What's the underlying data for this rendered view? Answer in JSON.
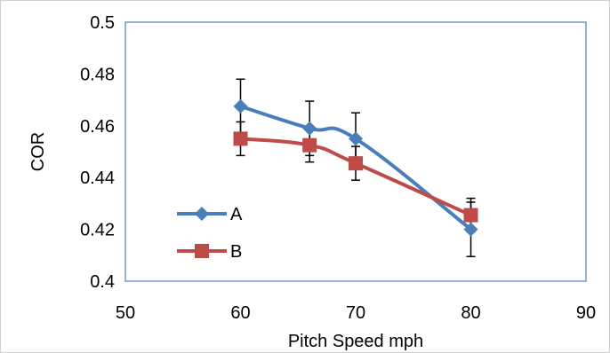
{
  "chart_data": {
    "type": "line",
    "xlabel": "Pitch Speed mph",
    "ylabel": "COR",
    "xlim": [
      50,
      90
    ],
    "ylim": [
      0.4,
      0.5
    ],
    "xticks": [
      50,
      60,
      70,
      80,
      90
    ],
    "yticks": [
      0.4,
      0.42,
      0.44,
      0.46,
      0.48,
      0.5
    ],
    "xtick_labels": [
      "50",
      "60",
      "70",
      "80",
      "90"
    ],
    "ytick_labels": [
      "0.4",
      "0.42",
      "0.44",
      "0.46",
      "0.48",
      "0.5"
    ],
    "grid": false,
    "legend_position": "bottom-left",
    "series": [
      {
        "name": "A",
        "color": "#4a7ebb",
        "marker": "diamond",
        "x": [
          60,
          66,
          70,
          80
        ],
        "y": [
          0.4675,
          0.459,
          0.455,
          0.42
        ],
        "err": [
          0.0105,
          0.0105,
          0.01,
          0.0105
        ]
      },
      {
        "name": "B",
        "color": "#be4b48",
        "marker": "square",
        "x": [
          60,
          66,
          70,
          80
        ],
        "y": [
          0.455,
          0.4525,
          0.4455,
          0.4255
        ],
        "err": [
          0.0065,
          0.0065,
          0.0065,
          0.0065
        ]
      }
    ]
  }
}
